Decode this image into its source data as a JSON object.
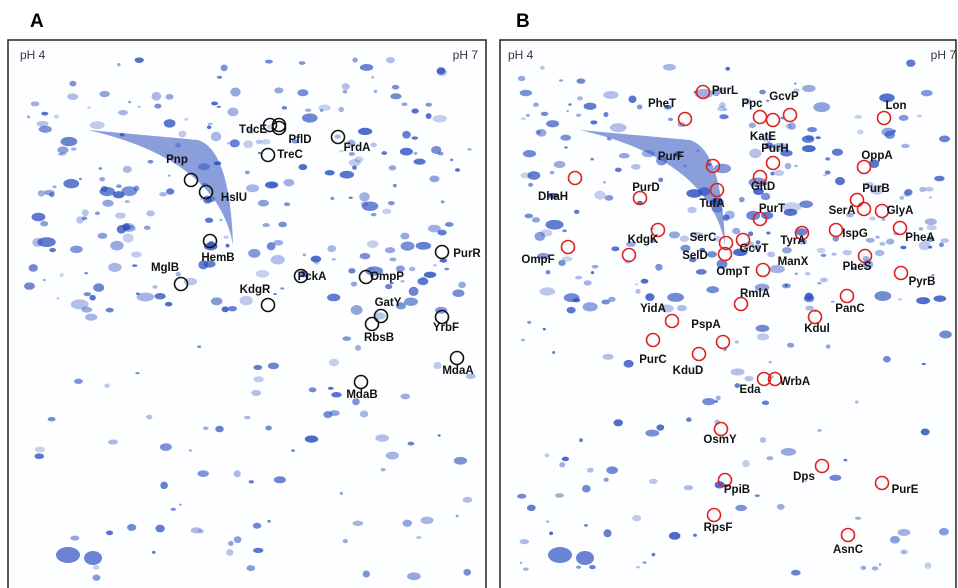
{
  "panels": [
    {
      "letter": "A",
      "ph_left": "pH 4",
      "ph_right": "pH 7",
      "proteins": [
        "TdcE",
        "PflD",
        "TreC",
        "FrdA",
        "Pnp",
        "HslU",
        "HemB",
        "MglB",
        "KdgR",
        "PckA",
        "OmpP",
        "PurR",
        "GatY",
        "RbsB",
        "YrbF",
        "MdaA",
        "MdaB"
      ]
    },
    {
      "letter": "B",
      "ph_left": "pH 4",
      "ph_right": "pH 7",
      "proteins": [
        "PurL",
        "PheT",
        "Ppc",
        "GcvP",
        "Lon",
        "KatE",
        "PurH",
        "OppA",
        "PurF",
        "DhaH",
        "PurD",
        "PurB",
        "GltD",
        "SerA",
        "GlyA",
        "TufA",
        "PurT",
        "KdgK",
        "SerC",
        "IspG",
        "PheA",
        "TyrA",
        "OmpF",
        "SelD",
        "GcvT",
        "ManX",
        "OmpT",
        "PheS",
        "PyrB",
        "RmlA",
        "PanC",
        "YidA",
        "Kdul",
        "PspA",
        "PurC",
        "KduD",
        "Eda",
        "WrbA",
        "OsmY",
        "Dps",
        "PurE",
        "PpiB",
        "RpsF",
        "AsnC"
      ]
    }
  ]
}
